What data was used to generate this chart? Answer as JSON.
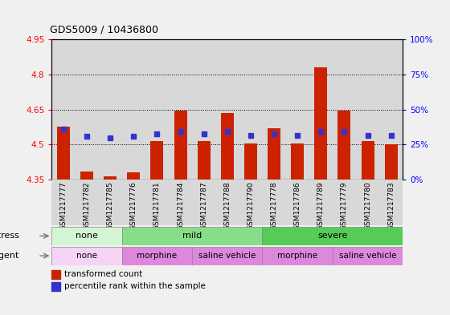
{
  "title": "GDS5009 / 10436800",
  "samples": [
    "GSM1217777",
    "GSM1217782",
    "GSM1217785",
    "GSM1217776",
    "GSM1217781",
    "GSM1217784",
    "GSM1217787",
    "GSM1217788",
    "GSM1217790",
    "GSM1217778",
    "GSM1217786",
    "GSM1217789",
    "GSM1217779",
    "GSM1217780",
    "GSM1217783"
  ],
  "red_values": [
    4.575,
    4.385,
    4.365,
    4.38,
    4.515,
    4.645,
    4.515,
    4.635,
    4.505,
    4.57,
    4.505,
    4.83,
    4.645,
    4.515,
    4.5
  ],
  "blue_values": [
    4.565,
    4.535,
    4.53,
    4.535,
    4.545,
    4.555,
    4.545,
    4.555,
    4.54,
    4.545,
    4.54,
    4.555,
    4.555,
    4.54,
    4.54
  ],
  "ymin": 4.35,
  "ymax": 4.95,
  "yticks_left": [
    4.35,
    4.5,
    4.65,
    4.8,
    4.95
  ],
  "yticks_right": [
    0,
    25,
    50,
    75,
    100
  ],
  "ytick_labels_left": [
    "4.35",
    "4.5",
    "4.65",
    "4.8",
    "4.95"
  ],
  "ytick_labels_right": [
    "0%",
    "25%",
    "50%",
    "75%",
    "100%"
  ],
  "grid_lines": [
    4.5,
    4.65,
    4.8
  ],
  "stress_groups": [
    {
      "label": "none",
      "start": 0,
      "end": 3,
      "color": "#d4f5d4"
    },
    {
      "label": "mild",
      "start": 3,
      "end": 9,
      "color": "#88dd88"
    },
    {
      "label": "severe",
      "start": 9,
      "end": 15,
      "color": "#55cc55"
    }
  ],
  "agent_groups": [
    {
      "label": "none",
      "start": 0,
      "end": 3,
      "color": "#f5d4f5"
    },
    {
      "label": "morphine",
      "start": 3,
      "end": 6,
      "color": "#dd88dd"
    },
    {
      "label": "saline vehicle",
      "start": 6,
      "end": 9,
      "color": "#dd88dd"
    },
    {
      "label": "morphine",
      "start": 9,
      "end": 12,
      "color": "#dd88dd"
    },
    {
      "label": "saline vehicle",
      "start": 12,
      "end": 15,
      "color": "#dd88dd"
    }
  ],
  "bar_color": "#cc2200",
  "dot_color": "#3333cc",
  "bar_width": 0.55,
  "bar_bottom": 4.35,
  "col_bg_color": "#d8d8d8",
  "plot_bg_color": "#ffffff",
  "fig_bg_color": "#f0f0f0"
}
